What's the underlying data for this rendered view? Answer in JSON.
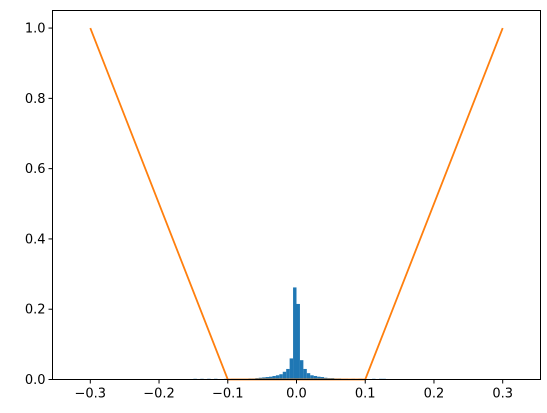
{
  "chart_data": {
    "type": "bar",
    "title": "",
    "xlabel": "",
    "ylabel": "",
    "xlim": [
      -0.355,
      0.355
    ],
    "ylim": [
      0,
      1.05
    ],
    "grid": false,
    "legend": "none",
    "x_ticks": [
      -0.3,
      -0.2,
      -0.1,
      0.0,
      0.1,
      0.2,
      0.3
    ],
    "x_tick_labels": [
      "−0.3",
      "−0.2",
      "−0.1",
      "0.0",
      "0.1",
      "0.2",
      "0.3"
    ],
    "y_ticks": [
      0.0,
      0.2,
      0.4,
      0.6,
      0.8,
      1.0
    ],
    "y_tick_labels": [
      "0.0",
      "0.2",
      "0.4",
      "0.6",
      "0.8",
      "1.0"
    ],
    "series": [
      {
        "kind": "histogram",
        "color": "#1f77b4",
        "bin_width": 0.005,
        "bin_centers": [
          -0.1475,
          -0.1375,
          -0.1275,
          -0.1175,
          -0.1025,
          -0.0925,
          -0.0875,
          -0.0825,
          -0.0775,
          -0.0725,
          -0.0675,
          -0.0625,
          -0.0575,
          -0.0525,
          -0.0475,
          -0.0425,
          -0.0375,
          -0.0325,
          -0.0275,
          -0.0225,
          -0.0175,
          -0.0125,
          -0.0075,
          -0.0025,
          0.0025,
          0.0075,
          0.0125,
          0.0175,
          0.0225,
          0.0275,
          0.0325,
          0.0375,
          0.0425,
          0.0475,
          0.0525,
          0.0575,
          0.0625,
          0.0675,
          0.0725,
          0.0825,
          0.0925,
          0.1125,
          0.1225,
          0.1275
        ],
        "heights": [
          0.002,
          0.002,
          0.002,
          0.002,
          0.002,
          0.002,
          0.002,
          0.002,
          0.002,
          0.002,
          0.003,
          0.003,
          0.004,
          0.005,
          0.006,
          0.007,
          0.008,
          0.01,
          0.012,
          0.015,
          0.022,
          0.03,
          0.06,
          0.262,
          0.215,
          0.055,
          0.03,
          0.018,
          0.012,
          0.01,
          0.008,
          0.007,
          0.005,
          0.004,
          0.004,
          0.003,
          0.003,
          0.002,
          0.002,
          0.002,
          0.002,
          0.002,
          0.002,
          0.002
        ]
      },
      {
        "kind": "line",
        "color": "#ff7f0e",
        "x": [
          -0.3,
          -0.1,
          0.1,
          0.3
        ],
        "y": [
          1.0,
          0.0,
          0.0,
          1.0
        ]
      }
    ]
  }
}
